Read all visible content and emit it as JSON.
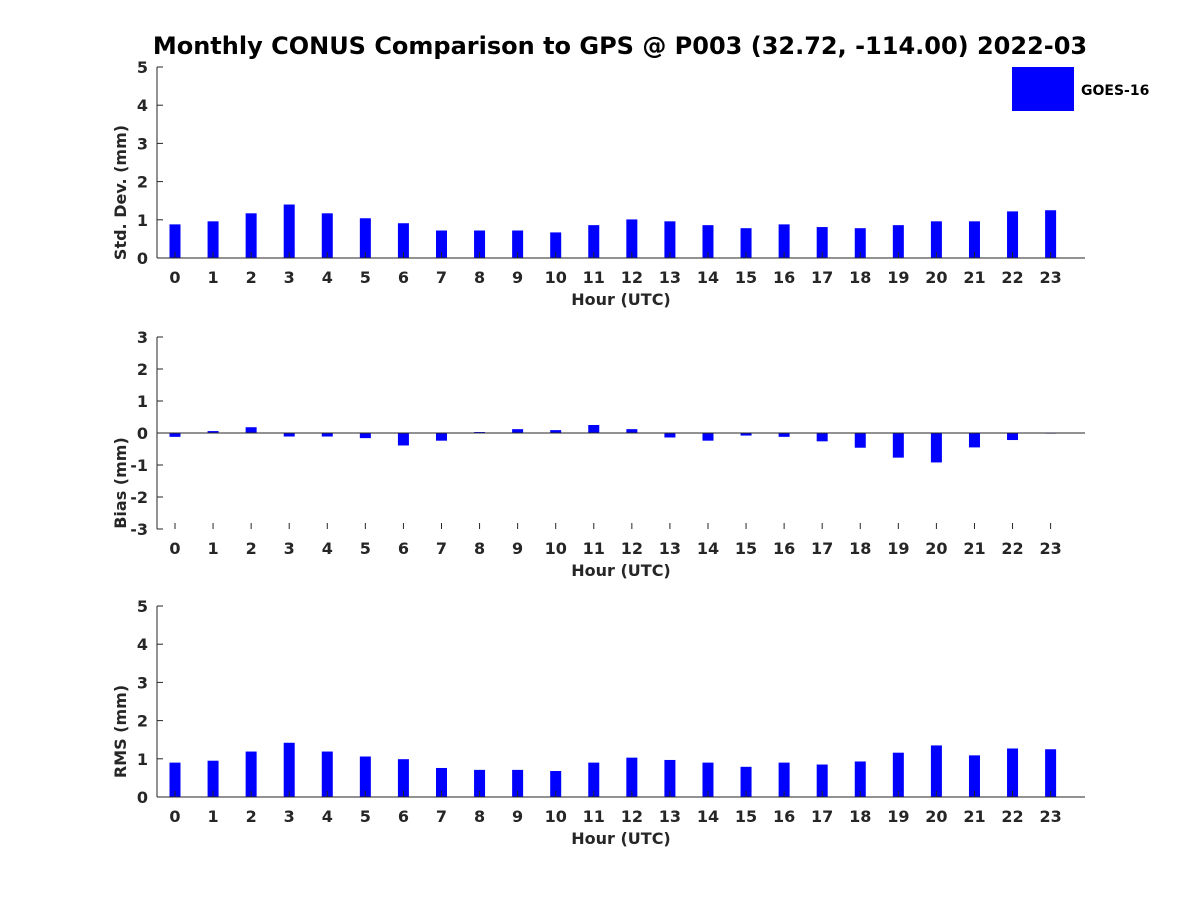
{
  "title": "Monthly CONUS Comparison to GPS @ P003 (32.72, -114.00) 2022-03",
  "legend": {
    "label": "GOES-16",
    "placement": "top-right"
  },
  "colors": {
    "bar": "#0000ff",
    "axis": "#262626"
  },
  "chart_data": [
    {
      "type": "bar",
      "ylabel": "Std. Dev. (mm)",
      "xlabel": "Hour (UTC)",
      "ylim": [
        0,
        5
      ],
      "yticks": [
        0,
        1,
        2,
        3,
        4,
        5
      ],
      "categories": [
        "0",
        "1",
        "2",
        "3",
        "4",
        "5",
        "6",
        "7",
        "8",
        "9",
        "10",
        "11",
        "12",
        "13",
        "14",
        "15",
        "16",
        "17",
        "18",
        "19",
        "20",
        "21",
        "22",
        "23"
      ],
      "series": [
        {
          "name": "GOES-16",
          "values": [
            0.88,
            0.96,
            1.17,
            1.4,
            1.17,
            1.04,
            0.91,
            0.72,
            0.72,
            0.72,
            0.67,
            0.86,
            1.01,
            0.96,
            0.86,
            0.78,
            0.88,
            0.81,
            0.78,
            0.86,
            0.96,
            0.96,
            1.22,
            1.25
          ]
        }
      ]
    },
    {
      "type": "bar",
      "ylabel": "Bias (mm)",
      "xlabel": "Hour (UTC)",
      "ylim": [
        -3,
        3
      ],
      "yticks": [
        -3,
        -2,
        -1,
        0,
        1,
        2,
        3
      ],
      "categories": [
        "0",
        "1",
        "2",
        "3",
        "4",
        "5",
        "6",
        "7",
        "8",
        "9",
        "10",
        "11",
        "12",
        "13",
        "14",
        "15",
        "16",
        "17",
        "18",
        "19",
        "20",
        "21",
        "22",
        "23"
      ],
      "series": [
        {
          "name": "GOES-16",
          "values": [
            -0.12,
            0.06,
            0.18,
            -0.11,
            -0.11,
            -0.16,
            -0.39,
            -0.24,
            0.03,
            0.12,
            0.09,
            0.25,
            0.12,
            -0.14,
            -0.24,
            -0.08,
            -0.12,
            -0.26,
            -0.46,
            -0.77,
            -0.92,
            -0.45,
            -0.22,
            0.0
          ]
        }
      ]
    },
    {
      "type": "bar",
      "ylabel": "RMS (mm)",
      "xlabel": "Hour (UTC)",
      "ylim": [
        0,
        5
      ],
      "yticks": [
        0,
        1,
        2,
        3,
        4,
        5
      ],
      "categories": [
        "0",
        "1",
        "2",
        "3",
        "4",
        "5",
        "6",
        "7",
        "8",
        "9",
        "10",
        "11",
        "12",
        "13",
        "14",
        "15",
        "16",
        "17",
        "18",
        "19",
        "20",
        "21",
        "22",
        "23"
      ],
      "series": [
        {
          "name": "GOES-16",
          "values": [
            0.9,
            0.95,
            1.19,
            1.42,
            1.19,
            1.06,
            0.99,
            0.76,
            0.71,
            0.71,
            0.68,
            0.9,
            1.03,
            0.97,
            0.9,
            0.79,
            0.9,
            0.85,
            0.93,
            1.16,
            1.35,
            1.09,
            1.27,
            1.25
          ]
        }
      ]
    }
  ]
}
